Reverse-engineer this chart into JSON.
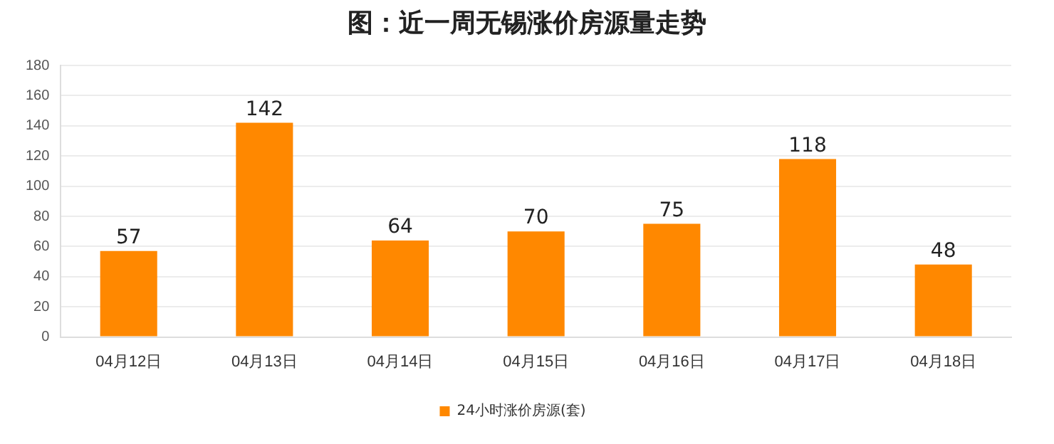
{
  "chart_data": {
    "type": "bar",
    "title": "图：近一周无锡涨价房源量走势",
    "categories": [
      "04月12日",
      "04月13日",
      "04月14日",
      "04月15日",
      "04月16日",
      "04月17日",
      "04月18日"
    ],
    "series": [
      {
        "name": "24小时涨价房源(套)",
        "color": "#ff8800",
        "values": [
          57,
          142,
          64,
          70,
          75,
          118,
          48
        ]
      }
    ],
    "ylim": [
      0,
      180
    ],
    "yticks": [
      0,
      20,
      40,
      60,
      80,
      100,
      120,
      140,
      160,
      180
    ],
    "grid": "y",
    "legend": "bottom",
    "data_labels": true
  }
}
